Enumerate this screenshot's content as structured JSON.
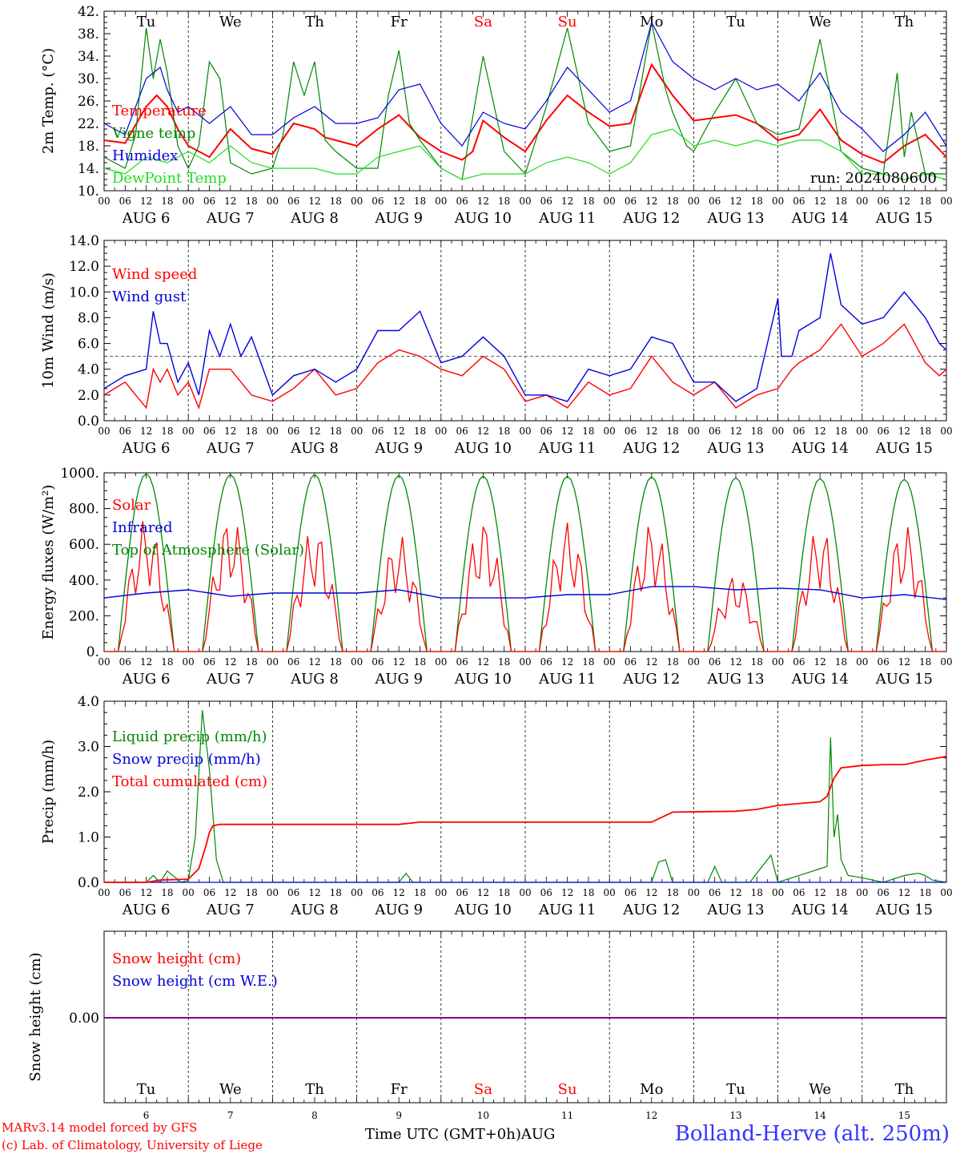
{
  "footer": {
    "credit_line1": "MARv3.14 model forced by GFS",
    "credit_line2": "(c) Lab. of Climatology, University of Liege",
    "x_axis_title": "Time UTC (GMT+0h)",
    "x_axis_month": "AUG",
    "station": "Bolland-Herve (alt. 250m)"
  },
  "days": {
    "names": [
      "Tu",
      "We",
      "Th",
      "Fr",
      "Sa",
      "Su",
      "Mo",
      "Tu",
      "We",
      "Th"
    ],
    "weekend_color": "#ff0000",
    "weekday_color": "#000000",
    "weekend_index": [
      4,
      5
    ],
    "dates": [
      "AUG 6",
      "AUG 7",
      "AUG 8",
      "AUG 9",
      "AUG 10",
      "AUG 11",
      "AUG 12",
      "AUG 13",
      "AUG 14",
      "AUG 15"
    ],
    "day_numbers": [
      "6",
      "7",
      "8",
      "9",
      "10",
      "11",
      "12",
      "13",
      "14",
      "15"
    ],
    "hour_labels": [
      "00",
      "06",
      "12",
      "18"
    ],
    "hour_label_end": "00"
  },
  "chart_data": [
    {
      "type": "line",
      "ylabel": "2m Temp. (°C)",
      "ylim": [
        10,
        42
      ],
      "yticks": [
        "10.",
        "14.",
        "18.",
        "22.",
        "26.",
        "30.",
        "34.",
        "38.",
        "42."
      ],
      "x_unit": "hours since AUG 6 00 UTC",
      "annotation": "run: 2024080600",
      "series": [
        {
          "name": "Temperature",
          "color": "#ff0000",
          "x": [
            0,
            6,
            12,
            15,
            18,
            21,
            24,
            30,
            36,
            42,
            48,
            54,
            60,
            63,
            66,
            72,
            78,
            84,
            90,
            96,
            102,
            105,
            108,
            114,
            120,
            126,
            132,
            138,
            144,
            150,
            156,
            162,
            168,
            174,
            180,
            186,
            192,
            198,
            204,
            210,
            216,
            222,
            228,
            234,
            240
          ],
          "y": [
            19,
            18.5,
            25,
            27,
            25,
            21,
            18,
            16,
            21,
            17.5,
            16.5,
            22,
            21,
            19.5,
            19,
            18,
            21,
            23.5,
            19.5,
            17,
            15.5,
            17,
            22.5,
            19.5,
            17,
            22.5,
            27,
            24,
            21.5,
            22,
            32.5,
            27,
            22.5,
            23,
            23.5,
            22,
            19,
            20,
            24.5,
            19,
            16.5,
            15,
            18,
            20,
            16
          ]
        },
        {
          "name": "Vigne temp",
          "color": "#008800",
          "x": [
            0,
            6,
            9,
            12,
            14,
            16,
            18,
            21,
            24,
            27,
            30,
            33,
            36,
            39,
            42,
            48,
            51,
            54,
            57,
            60,
            63,
            66,
            72,
            78,
            81,
            84,
            87,
            90,
            96,
            102,
            108,
            114,
            120,
            126,
            132,
            138,
            144,
            150,
            156,
            160,
            162,
            166,
            168,
            174,
            180,
            186,
            192,
            198,
            204,
            210,
            216,
            222,
            226,
            228,
            230,
            234,
            240
          ],
          "y": [
            16,
            14,
            20,
            39,
            30,
            37,
            31,
            18,
            14,
            18,
            33,
            30,
            15,
            14,
            13,
            14,
            20,
            33,
            27,
            33,
            19,
            17,
            14,
            14,
            27,
            35,
            22,
            19,
            14,
            12,
            34,
            17,
            13,
            25,
            39,
            22,
            17,
            18,
            40,
            28,
            24,
            18,
            17,
            24,
            30,
            22,
            20,
            21,
            37,
            17,
            14,
            13,
            31,
            16,
            24,
            13,
            13
          ]
        },
        {
          "name": "Humidex",
          "color": "#0000dd",
          "x": [
            0,
            6,
            12,
            16,
            18,
            21,
            24,
            30,
            36,
            42,
            48,
            54,
            60,
            66,
            72,
            78,
            84,
            90,
            96,
            102,
            108,
            114,
            120,
            126,
            132,
            138,
            144,
            150,
            156,
            162,
            168,
            174,
            180,
            186,
            192,
            198,
            204,
            210,
            216,
            222,
            228,
            234,
            240
          ],
          "y": [
            22,
            20,
            30,
            32,
            28,
            24,
            25,
            22,
            25,
            20,
            20,
            23,
            25,
            22,
            22,
            23,
            28,
            29,
            22,
            18,
            24,
            22,
            21,
            26,
            32,
            28,
            24,
            26,
            40,
            33,
            30,
            28,
            30,
            28,
            29,
            26,
            31,
            24,
            21,
            17,
            20,
            24,
            18
          ]
        },
        {
          "name": "DewPoint Temp",
          "color": "#22dd22",
          "x": [
            0,
            6,
            12,
            18,
            24,
            30,
            36,
            42,
            48,
            54,
            60,
            66,
            72,
            78,
            84,
            90,
            96,
            102,
            108,
            114,
            120,
            126,
            132,
            138,
            144,
            150,
            156,
            162,
            168,
            174,
            180,
            186,
            192,
            198,
            204,
            210,
            216,
            222,
            228,
            234,
            240
          ],
          "y": [
            14,
            13,
            16,
            15,
            17,
            15,
            18,
            15,
            14,
            14,
            14,
            13,
            13,
            16,
            17,
            18,
            14,
            12,
            13,
            13,
            13,
            15,
            16,
            15,
            13,
            15,
            20,
            21,
            18,
            19,
            18,
            19,
            18,
            19,
            19,
            17,
            13,
            13,
            12,
            13,
            12
          ]
        }
      ]
    },
    {
      "type": "line",
      "ylabel": "10m Wind (m/s)",
      "ylim": [
        0,
        14
      ],
      "yticks": [
        "0.0",
        "2.0",
        "4.0",
        "6.0",
        "8.0",
        "10.0",
        "12.0",
        "14.0"
      ],
      "reference_line": 5,
      "x_unit": "hours since AUG 6 00 UTC",
      "series": [
        {
          "name": "Wind speed",
          "color": "#ff0000",
          "x": [
            0,
            6,
            12,
            14,
            16,
            18,
            21,
            24,
            27,
            30,
            36,
            42,
            48,
            54,
            60,
            66,
            72,
            78,
            84,
            90,
            96,
            102,
            108,
            114,
            120,
            126,
            132,
            138,
            144,
            150,
            156,
            162,
            168,
            174,
            180,
            186,
            192,
            196,
            198,
            204,
            210,
            216,
            222,
            228,
            234,
            238,
            240
          ],
          "y": [
            2,
            3,
            1,
            4,
            3,
            4,
            2,
            3,
            1,
            4,
            4,
            2,
            1.5,
            2.5,
            4,
            2,
            2.5,
            4.5,
            5.5,
            5,
            4,
            3.5,
            5,
            4,
            1.5,
            2,
            1,
            3,
            2,
            2.5,
            5,
            3,
            2,
            3,
            1,
            2,
            2.5,
            4,
            4.5,
            5.5,
            7.5,
            5,
            6,
            7.5,
            4.5,
            3.5,
            4
          ]
        },
        {
          "name": "Wind gust",
          "color": "#0000dd",
          "x": [
            0,
            6,
            12,
            14,
            16,
            18,
            21,
            24,
            27,
            30,
            33,
            36,
            39,
            42,
            48,
            54,
            60,
            66,
            72,
            78,
            84,
            90,
            96,
            102,
            108,
            114,
            120,
            126,
            132,
            138,
            144,
            150,
            156,
            162,
            168,
            174,
            180,
            186,
            192,
            193,
            196,
            198,
            204,
            207,
            210,
            216,
            222,
            228,
            234,
            238,
            240
          ],
          "y": [
            2.5,
            3.5,
            4,
            8.5,
            6,
            6,
            3,
            4.5,
            2,
            7,
            5,
            7.5,
            5,
            6.5,
            2,
            3.5,
            4,
            3,
            4,
            7,
            7,
            8.5,
            4.5,
            5,
            6.5,
            5,
            2,
            2,
            1.5,
            4,
            3.5,
            4,
            6.5,
            6,
            3,
            3,
            1.5,
            2.5,
            9.5,
            5,
            5,
            7,
            8,
            13,
            9,
            7.5,
            8,
            10,
            8,
            6,
            5.5
          ]
        }
      ]
    },
    {
      "type": "line",
      "ylabel": "Energy fluxes (W/m²)",
      "ylim": [
        0,
        1100
      ],
      "yticks": [
        "0.",
        "200.",
        "400.",
        "600.",
        "800.",
        "1000."
      ],
      "x_unit": "hours since AUG 6 00 UTC",
      "series": [
        {
          "name": "Solar",
          "color": "#ff0000",
          "daily_peak": [
            820,
            840,
            770,
            720,
            820,
            800,
            800,
            480,
            770,
            790
          ]
        },
        {
          "name": "Infrared",
          "color": "#0000dd",
          "x": [
            0,
            12,
            24,
            36,
            48,
            60,
            72,
            84,
            96,
            108,
            120,
            132,
            144,
            156,
            168,
            180,
            192,
            204,
            216,
            228,
            240
          ],
          "y": [
            330,
            360,
            380,
            340,
            360,
            360,
            360,
            380,
            330,
            330,
            330,
            350,
            350,
            400,
            400,
            380,
            390,
            380,
            330,
            350,
            320
          ]
        },
        {
          "name": "Top of Atmosphere (Solar)",
          "color": "#008800",
          "daily_peak": [
            1095,
            1090,
            1090,
            1085,
            1080,
            1080,
            1075,
            1070,
            1065,
            1060
          ]
        }
      ]
    },
    {
      "type": "line",
      "ylabel": "Precip (mm/h)",
      "ylim": [
        0,
        4
      ],
      "yticks": [
        "0.0",
        "1.0",
        "2.0",
        "3.0",
        "4.0"
      ],
      "x_unit": "hours since AUG 6 00 UTC",
      "series": [
        {
          "name": "Liquid precip (mm/h)",
          "color": "#008800",
          "x": [
            0,
            12,
            14,
            16,
            18,
            22,
            24,
            26,
            28,
            30,
            32,
            34,
            60,
            84,
            86,
            88,
            90,
            100,
            156,
            158,
            160,
            162,
            168,
            172,
            174,
            176,
            184,
            190,
            192,
            196,
            204,
            206,
            207,
            208,
            209,
            210,
            212,
            216,
            222,
            228,
            232,
            234,
            236,
            240
          ],
          "y": [
            0,
            0,
            0.15,
            0,
            0.25,
            0,
            0.05,
            1,
            3.8,
            2.5,
            0.5,
            0,
            0,
            0,
            0.2,
            0,
            0,
            0,
            0,
            0.45,
            0.5,
            0,
            0,
            0,
            0.35,
            0,
            0,
            0.6,
            0,
            0.1,
            0.3,
            0.35,
            3.2,
            1,
            1.5,
            0.5,
            0.15,
            0.1,
            0,
            0.15,
            0.2,
            0.15,
            0.05,
            0
          ]
        },
        {
          "name": "Snow precip (mm/h)",
          "color": "#0000dd",
          "x": [
            0,
            240
          ],
          "y": [
            0,
            0
          ]
        },
        {
          "name": "Total cumulated (cm)",
          "color": "#ff0000",
          "x": [
            0,
            12,
            16,
            24,
            27,
            29,
            30,
            31,
            33,
            36,
            84,
            90,
            156,
            162,
            180,
            186,
            192,
            204,
            206,
            208,
            210,
            216,
            222,
            228,
            234,
            240
          ],
          "y": [
            0,
            0,
            0.05,
            0.07,
            0.3,
            0.8,
            1.1,
            1.25,
            1.28,
            1.28,
            1.28,
            1.33,
            1.33,
            1.55,
            1.57,
            1.61,
            1.7,
            1.78,
            1.9,
            2.3,
            2.53,
            2.58,
            2.6,
            2.6,
            2.7,
            2.78
          ]
        }
      ]
    },
    {
      "type": "line",
      "ylabel": "Snow height (cm)",
      "yticks": [
        "0.00"
      ],
      "x_unit": "hours since AUG 6 00 UTC",
      "series": [
        {
          "name": "Snow height (cm)",
          "color": "#ff0000",
          "x": [
            0,
            240
          ],
          "y": [
            0,
            0
          ]
        },
        {
          "name": "Snow height (cm W.E.)",
          "color": "#0000dd",
          "x": [
            0,
            240
          ],
          "y": [
            0,
            0
          ]
        }
      ],
      "line_color": "#880088"
    }
  ]
}
